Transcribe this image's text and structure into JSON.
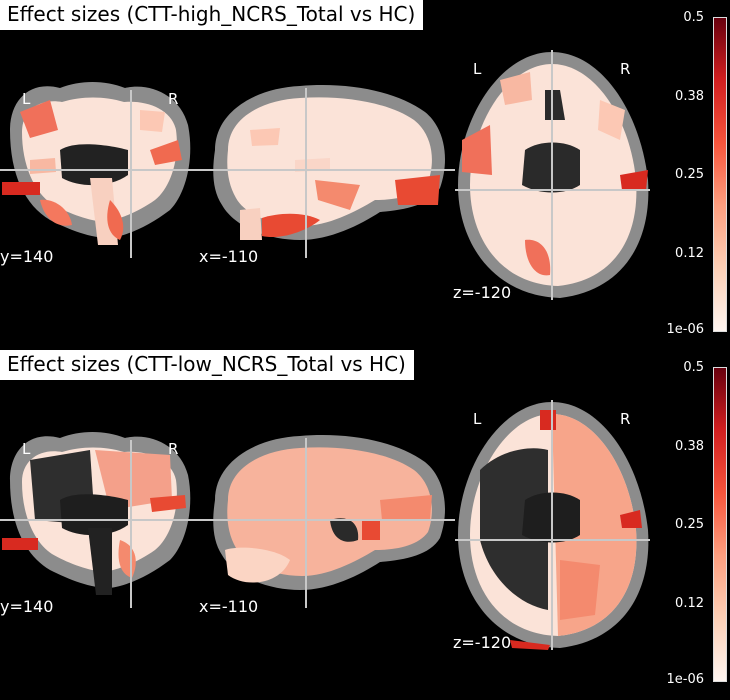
{
  "panels": [
    {
      "title": "Effect sizes (CTT-high_NCRS_Total vs HC)",
      "views": {
        "coronal": {
          "coord": "y=140",
          "left_label": "L",
          "right_label": "R"
        },
        "sagittal": {
          "coord": "x=-110"
        },
        "axial": {
          "coord": "z=-120",
          "left_label": "L",
          "right_label": "R"
        }
      },
      "colorbar": {
        "ticks": [
          "0.5",
          "0.38",
          "0.25",
          "0.12",
          "1e-06"
        ]
      }
    },
    {
      "title": "Effect sizes (CTT-low_NCRS_Total vs HC)",
      "views": {
        "coronal": {
          "coord": "y=140",
          "left_label": "L",
          "right_label": "R"
        },
        "sagittal": {
          "coord": "x=-110"
        },
        "axial": {
          "coord": "z=-120",
          "left_label": "L",
          "right_label": "R"
        }
      },
      "colorbar": {
        "ticks": [
          "0.5",
          "0.38",
          "0.25",
          "0.12",
          "1e-06"
        ]
      }
    }
  ],
  "colors": {
    "background": "#000000",
    "gray_matter": "#8c8c8c",
    "white_matter_base": "#fbe3d8",
    "effect_low": "#fcbba1",
    "effect_mid": "#f6553c",
    "effect_high": "#67000d",
    "crosshair": "#c8c8c8"
  },
  "colormap": "Reds"
}
